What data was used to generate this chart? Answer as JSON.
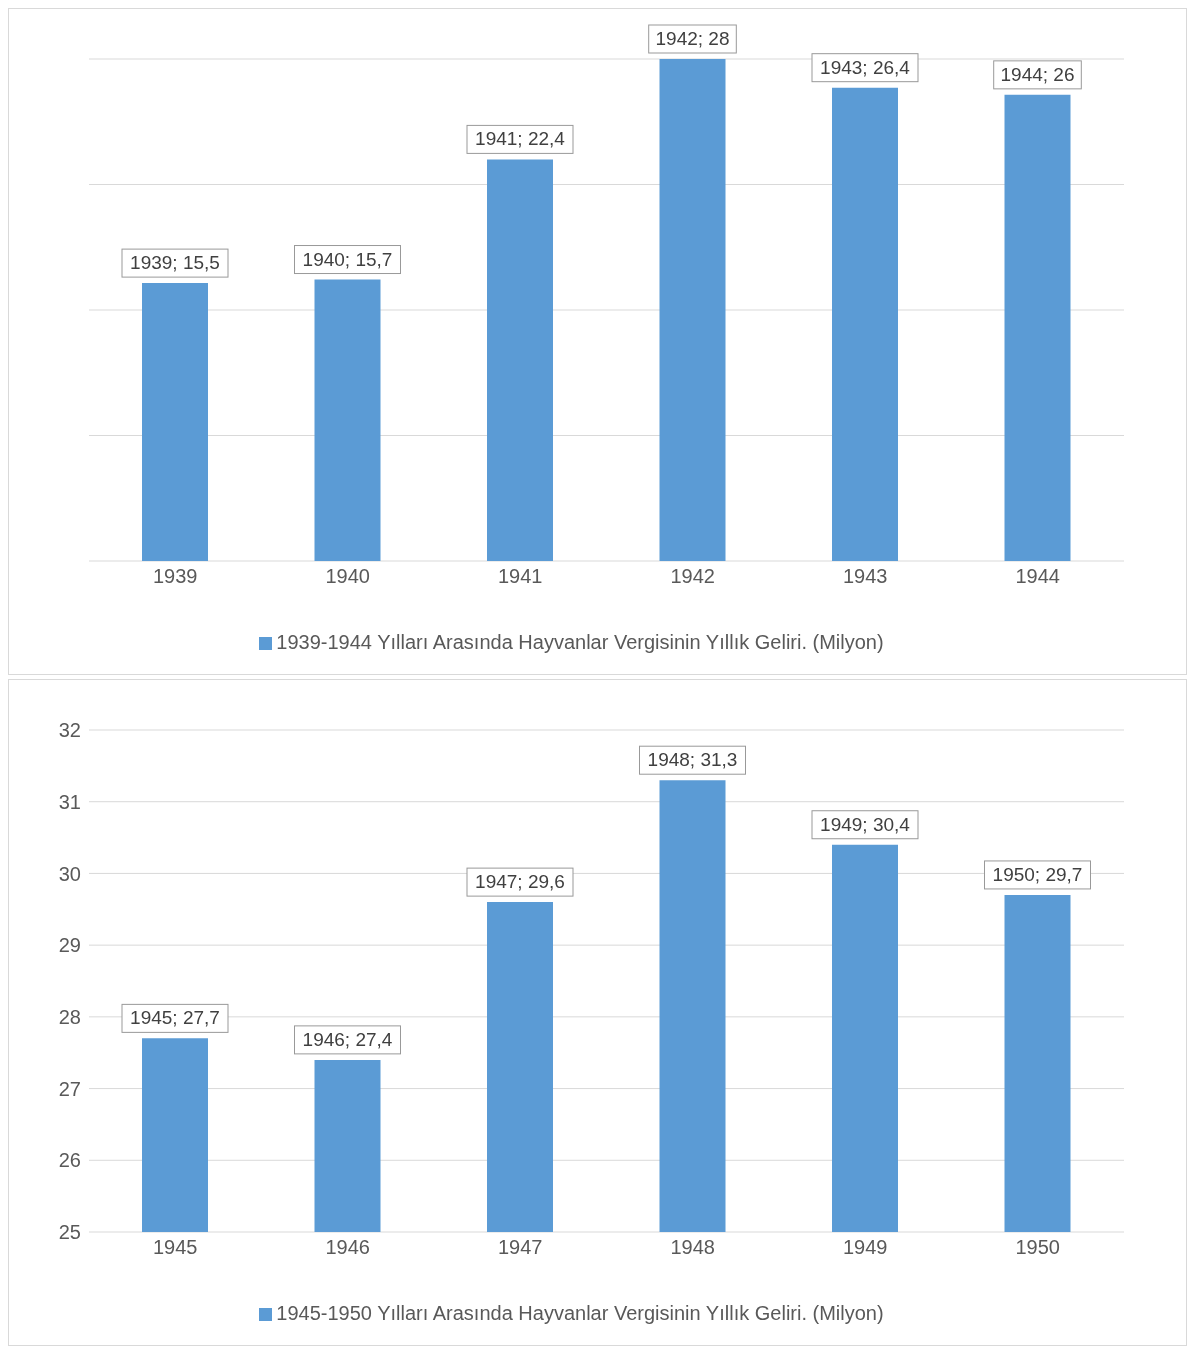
{
  "chart_data": [
    {
      "type": "bar",
      "categories": [
        "1939",
        "1940",
        "1941",
        "1942",
        "1943",
        "1944"
      ],
      "tick_labels": "x",
      "grid": "y",
      "legend": "bottom",
      "series": [
        {
          "name": "1939-1944 Yılları Arasında Hayvanlar Vergisinin Yıllık Geliri. (Milyon)",
          "color": "#5b9bd5",
          "values": [
            15.5,
            15.7,
            22.4,
            28,
            26.4,
            26
          ],
          "value_labels": [
            "1939; 15,5",
            "1940; 15,7",
            "1941; 22,4",
            "1942; 28",
            "1943; 26,4",
            "1944; 26"
          ]
        }
      ]
    },
    {
      "type": "bar",
      "categories": [
        "1945",
        "1946",
        "1947",
        "1948",
        "1949",
        "1950"
      ],
      "ylim": [
        25,
        32
      ],
      "yticks": [
        25,
        26,
        27,
        28,
        29,
        30,
        31,
        32
      ],
      "grid": "y",
      "legend": "bottom",
      "series": [
        {
          "name": "1945-1950 Yılları Arasında Hayvanlar Vergisinin Yıllık Geliri. (Milyon)",
          "color": "#5b9bd5",
          "values": [
            27.7,
            27.4,
            29.6,
            31.3,
            30.4,
            29.7
          ],
          "value_labels": [
            "1945; 27,7",
            "1946; 27,4",
            "1947; 29,6",
            "1948; 31,3",
            "1949; 30,4",
            "1950; 29,7"
          ]
        }
      ]
    }
  ]
}
